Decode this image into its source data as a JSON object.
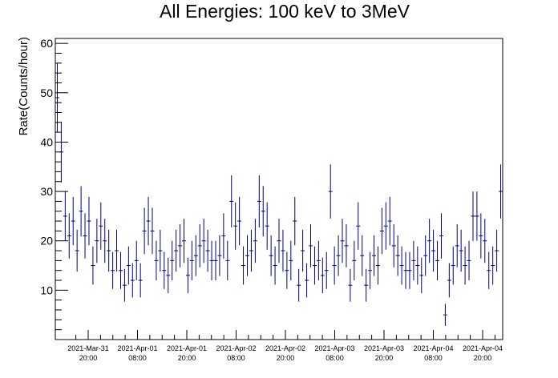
{
  "chart_data": {
    "type": "scatter",
    "title": "All Energies:  100 keV to 3MeV",
    "xlabel": "",
    "ylabel": "Rate(Counts/hour)",
    "ylim": [
      0,
      61
    ],
    "yticks": [
      10,
      20,
      30,
      40,
      50,
      60
    ],
    "xticks": [
      {
        "l1": "2021-Mar-31",
        "l2": "20:00"
      },
      {
        "l1": "2021-Apr-01",
        "l2": "08:00"
      },
      {
        "l1": "2021-Apr-01",
        "l2": "20:00"
      },
      {
        "l1": "2021-Apr-02",
        "l2": "08:00"
      },
      {
        "l1": "2021-Apr-02",
        "l2": "20:00"
      },
      {
        "l1": "2021-Apr-03",
        "l2": "08:00"
      },
      {
        "l1": "2021-Apr-03",
        "l2": "20:00"
      },
      {
        "l1": "2021-Apr-04",
        "l2": "08:00"
      },
      {
        "l1": "2021-Apr-04",
        "l2": "20:00"
      }
    ],
    "grid": false,
    "legend": "none",
    "marker": "error-bars",
    "color": "#000080",
    "series": [
      {
        "values": [
          49,
          38,
          25,
          21,
          24,
          18,
          26,
          21,
          24,
          15,
          20,
          23,
          20,
          18,
          14,
          18,
          14,
          11,
          15,
          12,
          16,
          12,
          22,
          24,
          22,
          16,
          18,
          14,
          13,
          16,
          18,
          19,
          20,
          13,
          16,
          17,
          19,
          20,
          18,
          16,
          16,
          17,
          21,
          16,
          28,
          23,
          24,
          15,
          17,
          18,
          20,
          28,
          26,
          23,
          17,
          15,
          20,
          18,
          14,
          16,
          24,
          11,
          18,
          12,
          19,
          15,
          16,
          13,
          14,
          30,
          15,
          17,
          20,
          19,
          11,
          16,
          23,
          17,
          11,
          14,
          17,
          15,
          22,
          23,
          24,
          19,
          17,
          15,
          14,
          14,
          16,
          15,
          13,
          17,
          20,
          18,
          16,
          21,
          5,
          12,
          15,
          19,
          18,
          15,
          16,
          25,
          25,
          21,
          20,
          14,
          15,
          18,
          30
        ]
      }
    ]
  }
}
